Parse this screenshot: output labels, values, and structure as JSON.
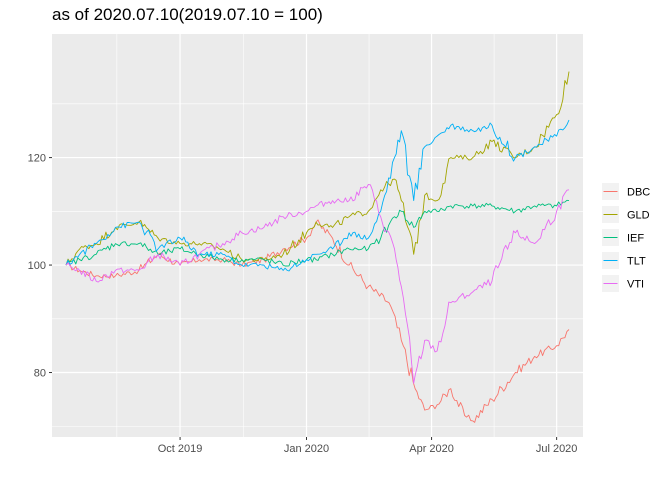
{
  "chart_data": {
    "type": "line",
    "title": "as of 2020.07.10(2019.07.10 = 100)",
    "xlabel": "",
    "ylabel": "",
    "x_range": [
      "2019-07-10",
      "2020-07-10"
    ],
    "ylim": [
      68,
      143
    ],
    "x_ticks": [
      {
        "label": "Oct 2019",
        "date": "2019-10-01"
      },
      {
        "label": "Jan 2020",
        "date": "2020-01-01"
      },
      {
        "label": "Apr 2020",
        "date": "2020-04-01"
      },
      {
        "label": "Jul 2020",
        "date": "2020-07-01"
      }
    ],
    "y_ticks": [
      80,
      100,
      120
    ],
    "grid": true,
    "legend_position": "right",
    "background": "#ebebeb",
    "series": [
      {
        "name": "DBC",
        "color": "#F8766D",
        "points": [
          [
            "2019-07-10",
            100
          ],
          [
            "2019-07-20",
            99
          ],
          [
            "2019-08-01",
            98
          ],
          [
            "2019-08-15",
            98
          ],
          [
            "2019-09-01",
            99
          ],
          [
            "2019-09-15",
            102
          ],
          [
            "2019-10-01",
            100
          ],
          [
            "2019-10-15",
            101
          ],
          [
            "2019-11-01",
            101
          ],
          [
            "2019-11-15",
            100
          ],
          [
            "2019-12-01",
            101
          ],
          [
            "2019-12-15",
            103
          ],
          [
            "2020-01-01",
            105
          ],
          [
            "2020-01-08",
            108
          ],
          [
            "2020-01-20",
            105
          ],
          [
            "2020-02-01",
            100
          ],
          [
            "2020-02-15",
            96
          ],
          [
            "2020-03-01",
            93
          ],
          [
            "2020-03-10",
            86
          ],
          [
            "2020-03-20",
            77
          ],
          [
            "2020-03-27",
            73
          ],
          [
            "2020-04-05",
            74
          ],
          [
            "2020-04-15",
            77
          ],
          [
            "2020-04-25",
            72
          ],
          [
            "2020-05-01",
            71
          ],
          [
            "2020-05-15",
            75
          ],
          [
            "2020-06-01",
            80
          ],
          [
            "2020-06-15",
            83
          ],
          [
            "2020-07-01",
            85
          ],
          [
            "2020-07-10",
            88
          ]
        ]
      },
      {
        "name": "GLD",
        "color": "#A3A500",
        "points": [
          [
            "2019-07-10",
            100
          ],
          [
            "2019-07-20",
            103
          ],
          [
            "2019-08-01",
            104
          ],
          [
            "2019-08-15",
            107
          ],
          [
            "2019-09-01",
            108
          ],
          [
            "2019-09-15",
            105
          ],
          [
            "2019-10-01",
            104
          ],
          [
            "2019-10-15",
            104
          ],
          [
            "2019-11-01",
            103
          ],
          [
            "2019-11-15",
            101
          ],
          [
            "2019-12-01",
            101
          ],
          [
            "2019-12-15",
            102
          ],
          [
            "2020-01-01",
            106
          ],
          [
            "2020-01-08",
            108
          ],
          [
            "2020-01-20",
            107
          ],
          [
            "2020-02-01",
            109
          ],
          [
            "2020-02-15",
            110
          ],
          [
            "2020-02-24",
            114
          ],
          [
            "2020-03-05",
            116
          ],
          [
            "2020-03-10",
            112
          ],
          [
            "2020-03-19",
            102
          ],
          [
            "2020-03-27",
            113
          ],
          [
            "2020-04-05",
            112
          ],
          [
            "2020-04-15",
            120
          ],
          [
            "2020-05-01",
            120
          ],
          [
            "2020-05-15",
            123
          ],
          [
            "2020-06-01",
            120
          ],
          [
            "2020-06-15",
            122
          ],
          [
            "2020-07-01",
            128
          ],
          [
            "2020-07-10",
            136
          ]
        ]
      },
      {
        "name": "IEF",
        "color": "#00BF7D",
        "points": [
          [
            "2019-07-10",
            100
          ],
          [
            "2019-07-20",
            101
          ],
          [
            "2019-08-01",
            102
          ],
          [
            "2019-08-15",
            104
          ],
          [
            "2019-09-01",
            104
          ],
          [
            "2019-09-15",
            102
          ],
          [
            "2019-10-01",
            103
          ],
          [
            "2019-10-15",
            102
          ],
          [
            "2019-11-01",
            101
          ],
          [
            "2019-11-15",
            101
          ],
          [
            "2019-12-01",
            101
          ],
          [
            "2019-12-15",
            100
          ],
          [
            "2020-01-01",
            101
          ],
          [
            "2020-01-08",
            101
          ],
          [
            "2020-01-20",
            102
          ],
          [
            "2020-02-01",
            103
          ],
          [
            "2020-02-15",
            103
          ],
          [
            "2020-02-24",
            105
          ],
          [
            "2020-03-05",
            109
          ],
          [
            "2020-03-10",
            110
          ],
          [
            "2020-03-19",
            107
          ],
          [
            "2020-03-27",
            110
          ],
          [
            "2020-04-05",
            110
          ],
          [
            "2020-04-15",
            111
          ],
          [
            "2020-05-01",
            111
          ],
          [
            "2020-05-15",
            111
          ],
          [
            "2020-06-01",
            110
          ],
          [
            "2020-06-15",
            111
          ],
          [
            "2020-07-01",
            111
          ],
          [
            "2020-07-10",
            112
          ]
        ]
      },
      {
        "name": "TLT",
        "color": "#00B0F6",
        "points": [
          [
            "2019-07-10",
            100
          ],
          [
            "2019-07-20",
            102
          ],
          [
            "2019-08-01",
            104
          ],
          [
            "2019-08-15",
            107
          ],
          [
            "2019-09-01",
            108
          ],
          [
            "2019-09-15",
            103
          ],
          [
            "2019-10-01",
            105
          ],
          [
            "2019-10-15",
            102
          ],
          [
            "2019-11-01",
            102
          ],
          [
            "2019-11-15",
            100
          ],
          [
            "2019-12-01",
            100
          ],
          [
            "2019-12-15",
            99
          ],
          [
            "2020-01-01",
            101
          ],
          [
            "2020-01-08",
            102
          ],
          [
            "2020-01-20",
            103
          ],
          [
            "2020-02-01",
            106
          ],
          [
            "2020-02-15",
            105
          ],
          [
            "2020-02-24",
            110
          ],
          [
            "2020-03-05",
            120
          ],
          [
            "2020-03-10",
            125
          ],
          [
            "2020-03-19",
            112
          ],
          [
            "2020-03-27",
            122
          ],
          [
            "2020-04-05",
            124
          ],
          [
            "2020-04-15",
            126
          ],
          [
            "2020-05-01",
            125
          ],
          [
            "2020-05-15",
            126
          ],
          [
            "2020-06-01",
            120
          ],
          [
            "2020-06-15",
            122
          ],
          [
            "2020-07-01",
            124
          ],
          [
            "2020-07-10",
            127
          ]
        ]
      },
      {
        "name": "VTI",
        "color": "#E76BF3",
        "points": [
          [
            "2019-07-10",
            100
          ],
          [
            "2019-07-20",
            99
          ],
          [
            "2019-08-01",
            97
          ],
          [
            "2019-08-15",
            99
          ],
          [
            "2019-09-01",
            99
          ],
          [
            "2019-09-15",
            102
          ],
          [
            "2019-10-01",
            100
          ],
          [
            "2019-10-15",
            102
          ],
          [
            "2019-11-01",
            104
          ],
          [
            "2019-11-15",
            106
          ],
          [
            "2019-12-01",
            107
          ],
          [
            "2019-12-15",
            109
          ],
          [
            "2020-01-01",
            110
          ],
          [
            "2020-01-08",
            111
          ],
          [
            "2020-01-20",
            112
          ],
          [
            "2020-02-01",
            112
          ],
          [
            "2020-02-15",
            115
          ],
          [
            "2020-02-24",
            109
          ],
          [
            "2020-03-05",
            103
          ],
          [
            "2020-03-10",
            96
          ],
          [
            "2020-03-19",
            78
          ],
          [
            "2020-03-27",
            86
          ],
          [
            "2020-04-05",
            84
          ],
          [
            "2020-04-15",
            93
          ],
          [
            "2020-05-01",
            95
          ],
          [
            "2020-05-15",
            97
          ],
          [
            "2020-06-01",
            106
          ],
          [
            "2020-06-15",
            104
          ],
          [
            "2020-07-01",
            110
          ],
          [
            "2020-07-10",
            114
          ]
        ]
      }
    ]
  }
}
